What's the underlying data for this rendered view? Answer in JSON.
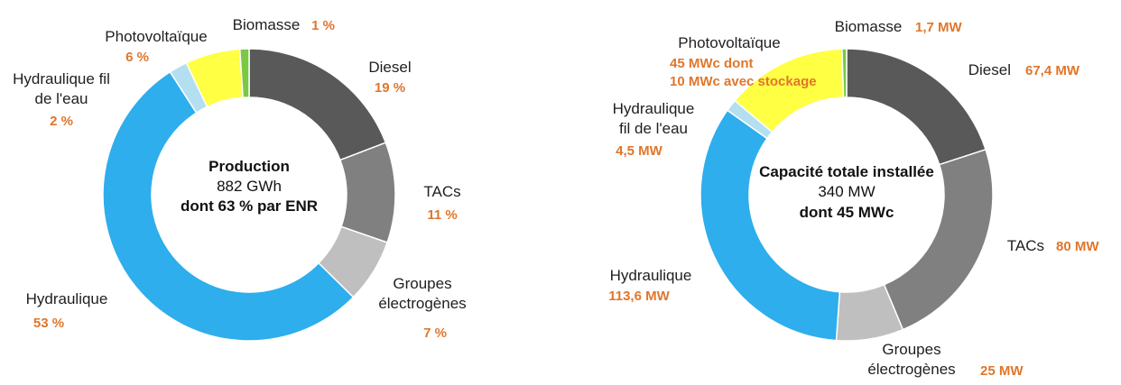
{
  "chart_data": [
    {
      "type": "pie",
      "style": "donut",
      "center_text": [
        "Production",
        "882 GWh",
        "dont 63 % par ENR"
      ],
      "slices": [
        {
          "label": [
            "Diesel"
          ],
          "value_text": [
            "19 %"
          ],
          "value": 19,
          "color": "#595959"
        },
        {
          "label": [
            "TACs"
          ],
          "value_text": [
            "11 %"
          ],
          "value": 11,
          "color": "#808080"
        },
        {
          "label": [
            "Groupes",
            "électrogènes"
          ],
          "value_text": [
            "7 %"
          ],
          "value": 7,
          "color": "#bfbfbf"
        },
        {
          "label": [
            "Hydraulique"
          ],
          "value_text": [
            "53 %"
          ],
          "value": 53,
          "color": "#2eaeec"
        },
        {
          "label": [
            "Hydraulique fil",
            "de l'eau"
          ],
          "value_text": [
            "2 %"
          ],
          "value": 2,
          "color": "#b4dff0"
        },
        {
          "label": [
            "Photovoltaïque"
          ],
          "value_text": [
            "6 %"
          ],
          "value": 6,
          "color": "#ffff44"
        },
        {
          "label": [
            "Biomasse"
          ],
          "value_text": [
            "1 %"
          ],
          "value": 1,
          "color": "#7ac943"
        }
      ]
    },
    {
      "type": "pie",
      "style": "donut",
      "center_text": [
        "Capacité totale installée",
        "340 MW",
        "dont 45 MWc"
      ],
      "slices": [
        {
          "label": [
            "Diesel"
          ],
          "value_text": [
            "67,4 MW"
          ],
          "value": 67.4,
          "color": "#595959"
        },
        {
          "label": [
            "TACs"
          ],
          "value_text": [
            "80 MW"
          ],
          "value": 80,
          "color": "#808080"
        },
        {
          "label": [
            "Groupes",
            "électrogènes"
          ],
          "value_text": [
            "25 MW"
          ],
          "value": 25,
          "color": "#bfbfbf"
        },
        {
          "label": [
            "Hydraulique"
          ],
          "value_text": [
            "113,6 MW"
          ],
          "value": 113.6,
          "color": "#2eaeec"
        },
        {
          "label": [
            "Hydraulique",
            "fil de l'eau"
          ],
          "value_text": [
            "4,5 MW"
          ],
          "value": 4.5,
          "color": "#b4dff0"
        },
        {
          "label": [
            "Photovoltaïque"
          ],
          "value_text": [
            "45 MWc dont",
            "10 MWc avec stockage"
          ],
          "value": 45,
          "color": "#ffff44"
        },
        {
          "label": [
            "Biomasse"
          ],
          "value_text": [
            "1,7 MW"
          ],
          "value": 1.7,
          "color": "#7ac943"
        }
      ]
    }
  ]
}
